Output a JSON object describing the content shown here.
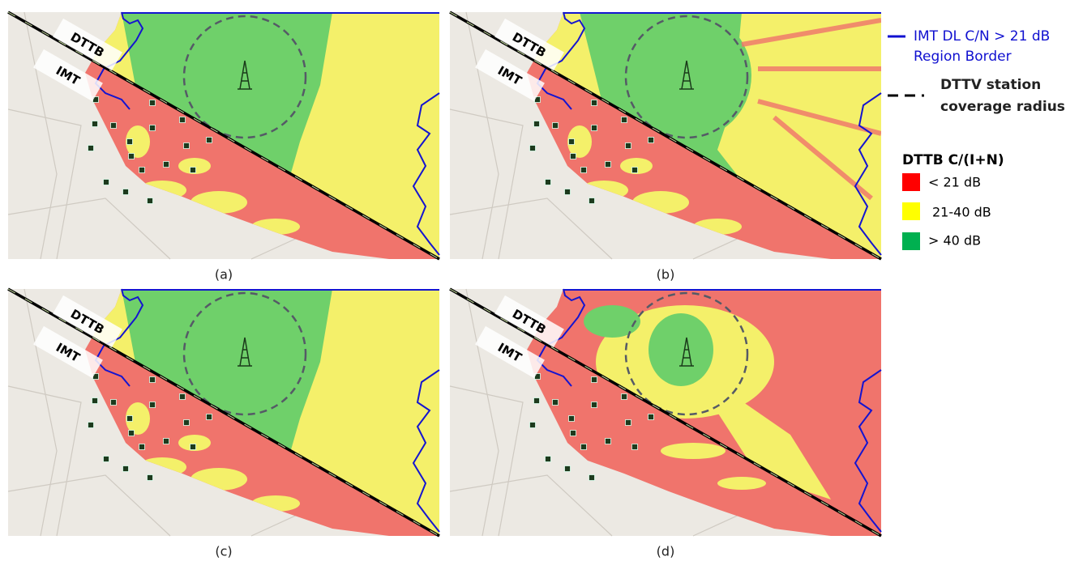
{
  "panels": [
    {
      "caption": "(a)",
      "labels": [
        "DTTB",
        "IMT"
      ]
    },
    {
      "caption": "(b)",
      "labels": [
        "DTTB",
        "IMT"
      ]
    },
    {
      "caption": "(c)",
      "labels": [
        "DTTB",
        "IMT"
      ]
    },
    {
      "caption": "(d)",
      "labels": [
        "DTTB",
        "IMT"
      ]
    }
  ],
  "legend": {
    "border": {
      "line1": "IMT DL C/N > 21 dB",
      "line2": "Region Border"
    },
    "radius": {
      "line1": "DTTV station",
      "line2": "coverage radius"
    },
    "title": "DTTB C/(I+N)",
    "items": [
      "< 21 dB",
      "21-40 dB",
      "> 40 dB"
    ]
  }
}
